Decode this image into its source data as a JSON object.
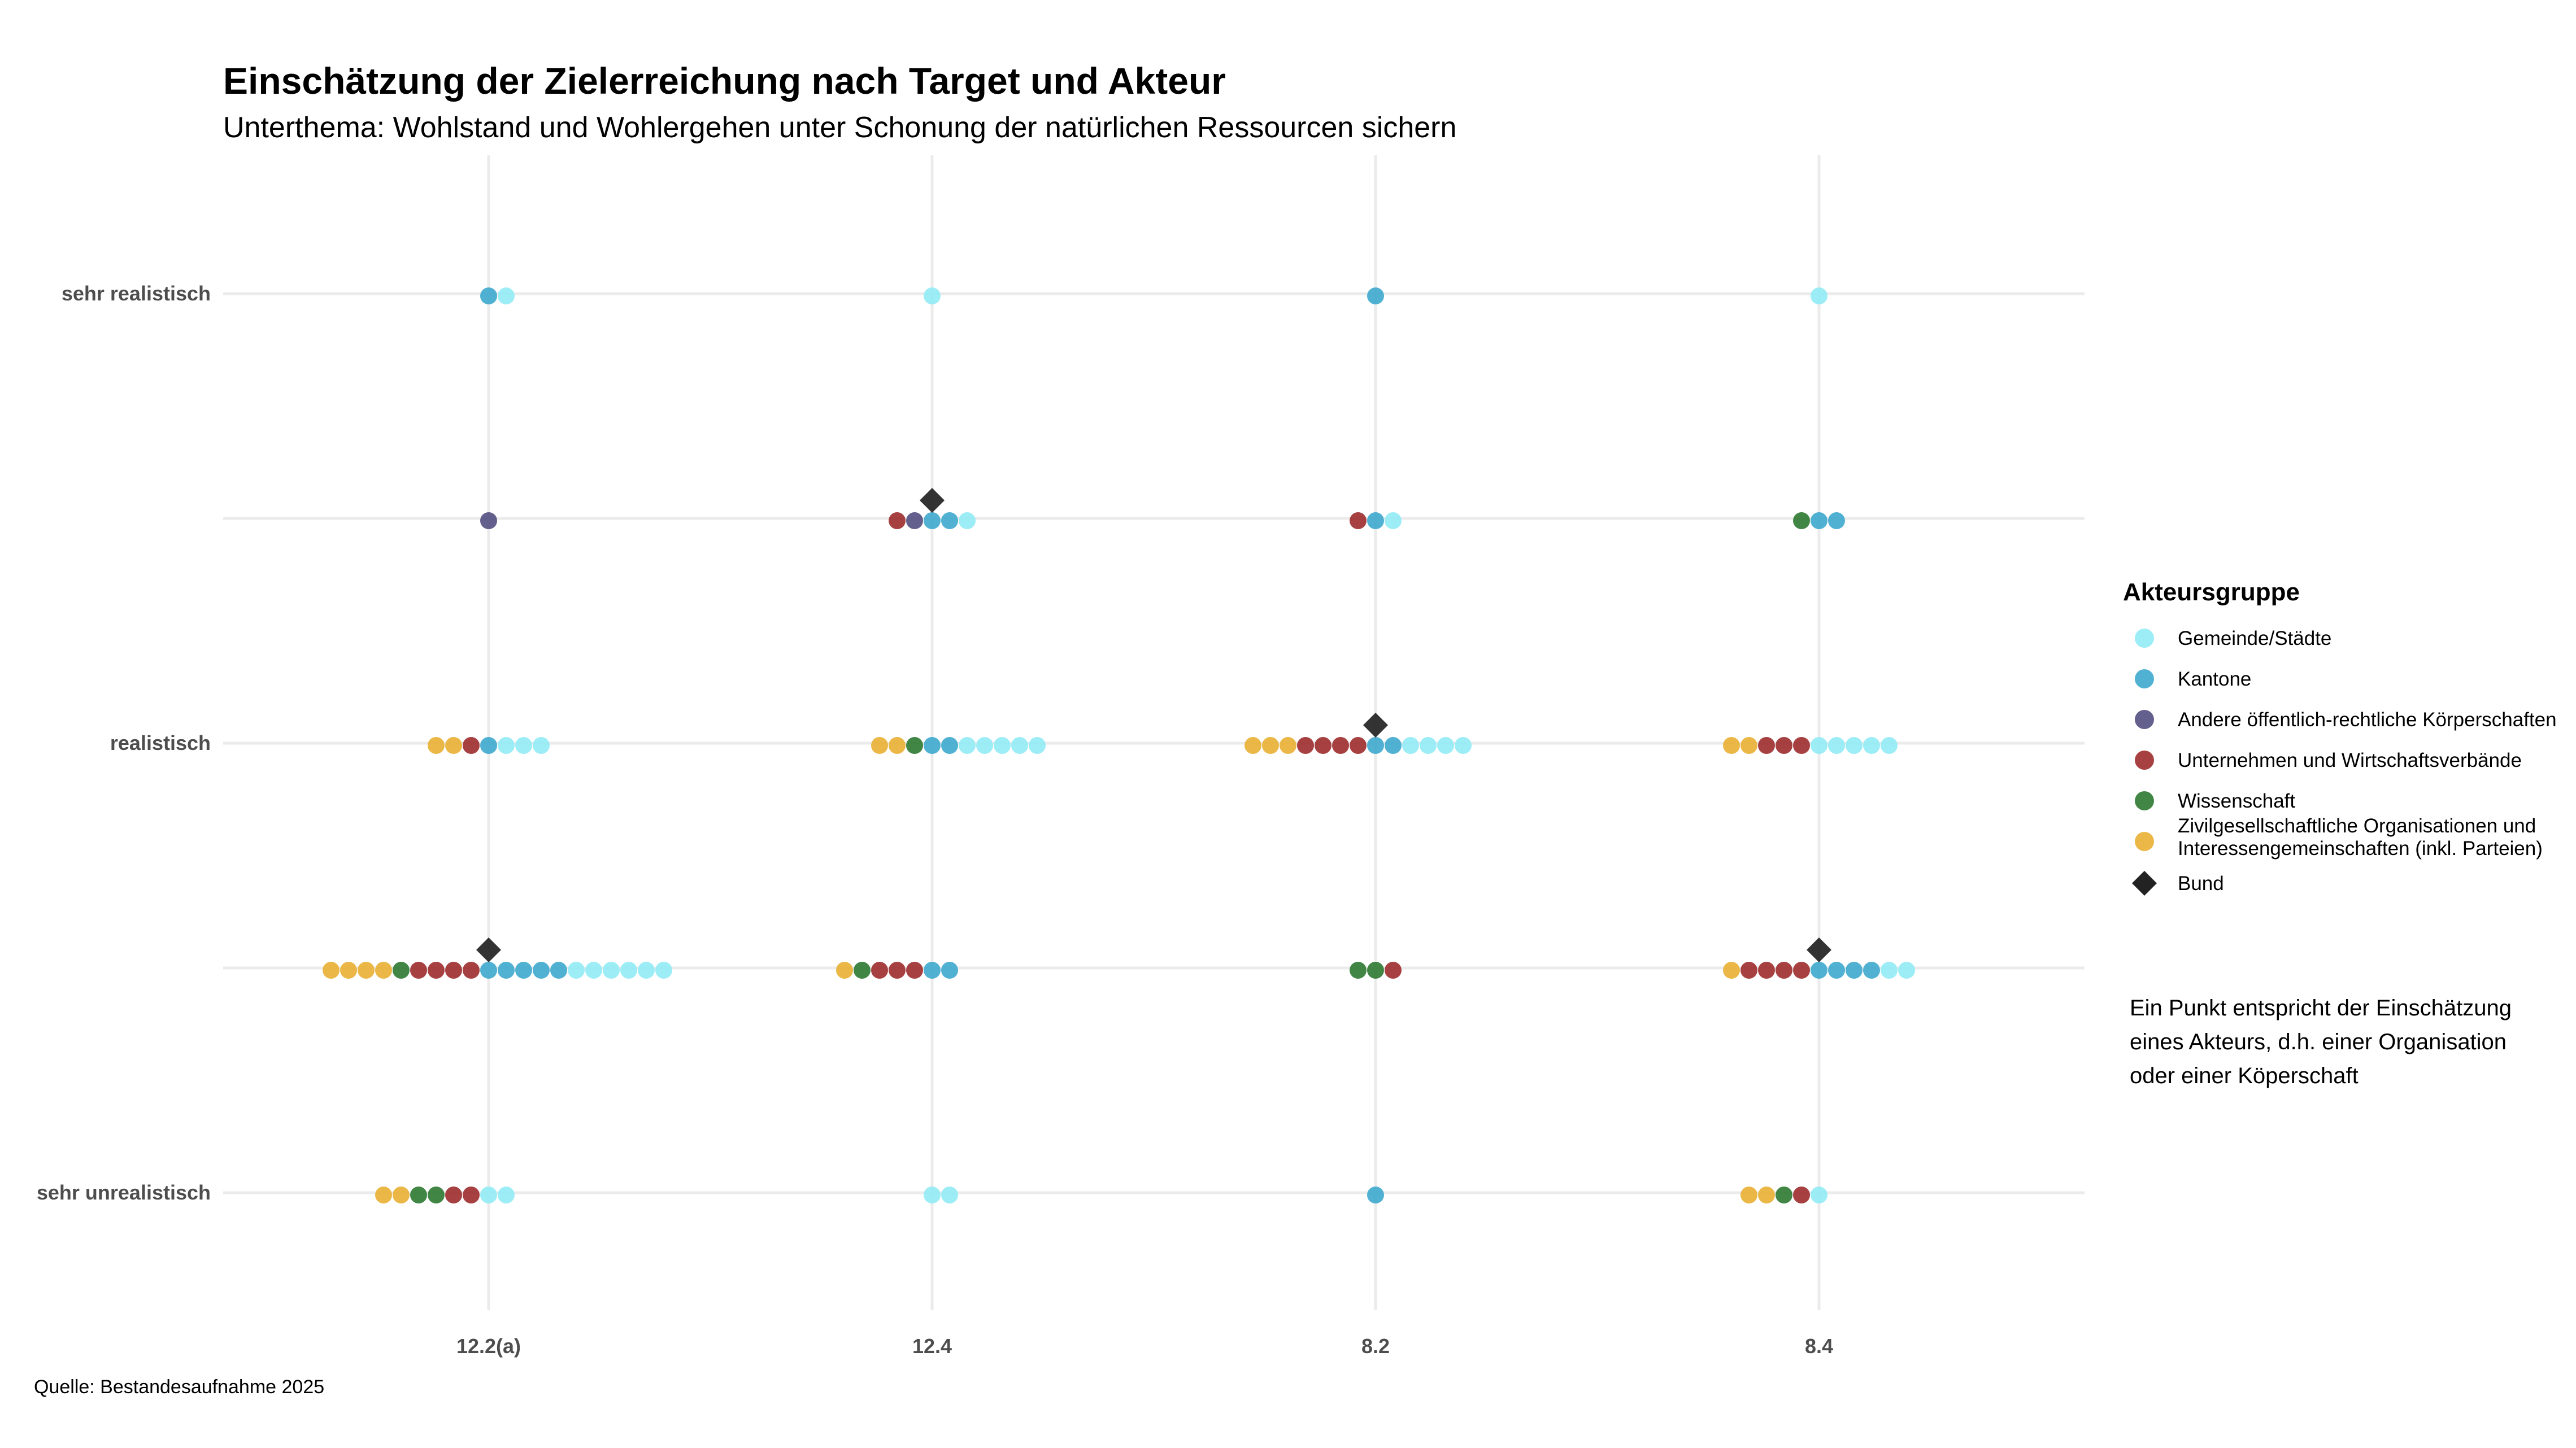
{
  "chart_data": {
    "type": "scatter",
    "title": "Einschätzung der Zielerreichung nach Target und Akteur",
    "subtitle": "Unterthema: Wohlstand und Wohlergehen unter Schonung der natürlichen Ressourcen sichern",
    "categories": [
      "12.2(a)",
      "12.4",
      "8.2",
      "8.4"
    ],
    "levels": [
      "sehr unrealistisch",
      "",
      "realistisch",
      "",
      "sehr realistisch"
    ],
    "y_tick_labels": [
      {
        "level": 5,
        "label": "sehr realistisch"
      },
      {
        "level": 3,
        "label": "realistisch"
      },
      {
        "level": 1,
        "label": "sehr unrealistisch"
      }
    ],
    "grid": true,
    "legend_position": "right",
    "legend": {
      "title": "Akteursgruppe",
      "entries": [
        {
          "key": "gemeinde",
          "label": "Gemeinde/Städte",
          "color": "#8FEAF6",
          "shape": "circle"
        },
        {
          "key": "kantone",
          "label": "Kantone",
          "color": "#39A6CC",
          "shape": "circle"
        },
        {
          "key": "andere",
          "label": "Andere öffentlich-rechtliche Körperschaften",
          "color": "#4E4A7E",
          "shape": "circle"
        },
        {
          "key": "unternehmen",
          "label": "Unternehmen und Wirtschaftsverbände",
          "color": "#9B2527",
          "shape": "circle"
        },
        {
          "key": "wissenschaft",
          "label": "Wissenschaft",
          "color": "#27752B",
          "shape": "circle"
        },
        {
          "key": "zivil",
          "label": "Zivilgesellschaftliche Organisationen und Interessengemeinschaften (inkl. Parteien)",
          "label_lines": [
            "Zivilgesellschaftliche Organisationen und",
            "Interessengemeinschaften (inkl. Parteien)"
          ],
          "color": "#E8AE2E",
          "shape": "circle"
        },
        {
          "key": "bund",
          "label": "Bund",
          "color": "#222222",
          "shape": "diamond"
        }
      ]
    },
    "series": [
      {
        "category": "12.2(a)",
        "level": 5,
        "counts": {
          "kantone": 1,
          "gemeinde": 1
        }
      },
      {
        "category": "12.2(a)",
        "level": 4,
        "counts": {
          "andere": 1
        }
      },
      {
        "category": "12.2(a)",
        "level": 3,
        "counts": {
          "zivil": 2,
          "unternehmen": 1,
          "kantone": 1,
          "gemeinde": 3
        }
      },
      {
        "category": "12.2(a)",
        "level": 2,
        "counts": {
          "zivil": 4,
          "wissenschaft": 1,
          "unternehmen": 4,
          "kantone": 5,
          "gemeinde": 6
        }
      },
      {
        "category": "12.2(a)",
        "level": 1,
        "counts": {
          "zivil": 2,
          "wissenschaft": 2,
          "unternehmen": 2,
          "gemeinde": 2
        }
      },
      {
        "category": "12.4",
        "level": 5,
        "counts": {
          "gemeinde": 1
        }
      },
      {
        "category": "12.4",
        "level": 4,
        "counts": {
          "unternehmen": 1,
          "andere": 1,
          "kantone": 2,
          "gemeinde": 1
        }
      },
      {
        "category": "12.4",
        "level": 3,
        "counts": {
          "zivil": 2,
          "wissenschaft": 1,
          "kantone": 2,
          "gemeinde": 5
        }
      },
      {
        "category": "12.4",
        "level": 2,
        "counts": {
          "zivil": 1,
          "wissenschaft": 1,
          "unternehmen": 3,
          "kantone": 2
        }
      },
      {
        "category": "12.4",
        "level": 1,
        "counts": {
          "gemeinde": 2
        }
      },
      {
        "category": "8.2",
        "level": 5,
        "counts": {
          "kantone": 1
        }
      },
      {
        "category": "8.2",
        "level": 4,
        "counts": {
          "unternehmen": 1,
          "kantone": 1,
          "gemeinde": 1
        }
      },
      {
        "category": "8.2",
        "level": 3,
        "counts": {
          "zivil": 3,
          "unternehmen": 4,
          "kantone": 2,
          "gemeinde": 4
        }
      },
      {
        "category": "8.2",
        "level": 2,
        "counts": {
          "wissenschaft": 2,
          "unternehmen": 1
        }
      },
      {
        "category": "8.2",
        "level": 1,
        "counts": {
          "kantone": 1
        }
      },
      {
        "category": "8.4",
        "level": 5,
        "counts": {
          "gemeinde": 1
        }
      },
      {
        "category": "8.4",
        "level": 4,
        "counts": {
          "wissenschaft": 1,
          "kantone": 2
        }
      },
      {
        "category": "8.4",
        "level": 3,
        "counts": {
          "zivil": 2,
          "unternehmen": 3,
          "gemeinde": 5
        }
      },
      {
        "category": "8.4",
        "level": 2,
        "counts": {
          "zivil": 1,
          "unternehmen": 4,
          "kantone": 4,
          "gemeinde": 2
        }
      },
      {
        "category": "8.4",
        "level": 1,
        "counts": {
          "zivil": 2,
          "wissenschaft": 1,
          "unternehmen": 1,
          "gemeinde": 1
        }
      }
    ],
    "bund": [
      {
        "category": "12.4",
        "level": 4
      },
      {
        "category": "8.2",
        "level": 3
      },
      {
        "category": "12.2(a)",
        "level": 2
      },
      {
        "category": "8.4",
        "level": 2
      }
    ]
  },
  "note": {
    "lines": [
      "Ein Punkt entspricht der Einschätzung",
      "eines Akteurs, d.h. einer Organisation",
      "oder einer Köperschaft"
    ]
  },
  "caption": "Quelle: Bestandesaufnahme 2025"
}
